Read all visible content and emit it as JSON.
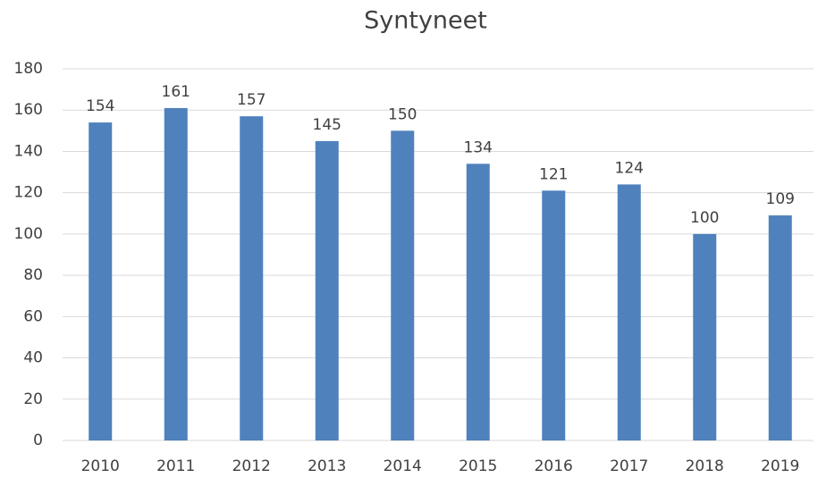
{
  "chart_data": {
    "type": "bar",
    "title": "Syntyneet",
    "categories": [
      "2010",
      "2011",
      "2012",
      "2013",
      "2014",
      "2015",
      "2016",
      "2017",
      "2018",
      "2019"
    ],
    "values": [
      154,
      161,
      157,
      145,
      150,
      134,
      121,
      124,
      100,
      109
    ],
    "color": "#4f81bd",
    "ylim": [
      0,
      180
    ],
    "yticks": [
      0,
      20,
      40,
      60,
      80,
      100,
      120,
      140,
      160,
      180
    ],
    "grid": true
  }
}
